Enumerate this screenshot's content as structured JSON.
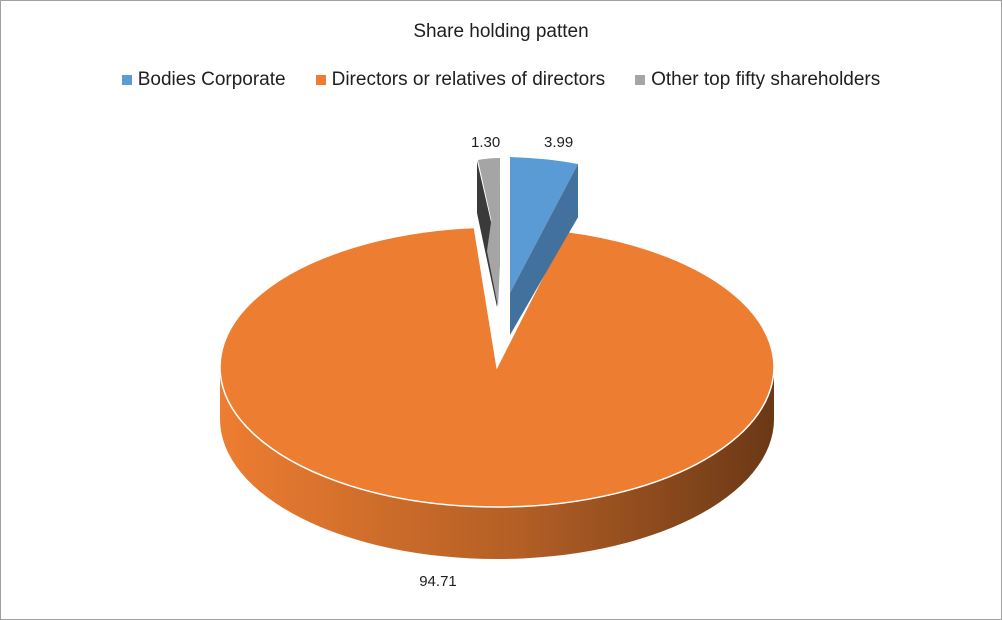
{
  "chart_data": {
    "type": "pie",
    "title": "Share holding patten",
    "legend_position": "top",
    "style": "3d-exploded",
    "slices": [
      {
        "name": "Bodies Corporate",
        "value": 3.99,
        "label": "3.99",
        "color": "#5B9BD5",
        "side_color": "#41719C"
      },
      {
        "name": "Directors or relatives of directors",
        "value": 94.71,
        "label": "94.71",
        "color": "#ED7D31",
        "side_color": "#8F4512"
      },
      {
        "name": "Other top fifty shareholders",
        "value": 1.3,
        "label": "1.30",
        "color": "#A5A5A5",
        "side_color": "#3A3A3A"
      }
    ]
  }
}
